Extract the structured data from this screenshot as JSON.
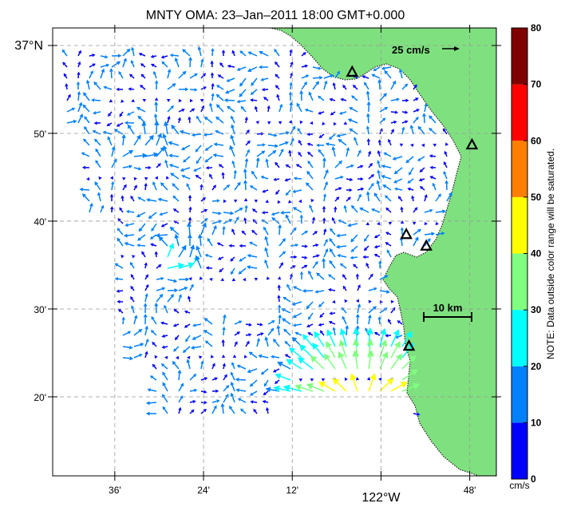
{
  "title": "MNTY OMA: 23–Jan–2011 18:00 GMT+0.000",
  "map": {
    "x_ticks": [
      {
        "label": "36'",
        "lon": -122.6
      },
      {
        "label": "24'",
        "lon": -122.4
      },
      {
        "label": "12'",
        "lon": -122.2
      },
      {
        "label": "122°W",
        "lon": -122.0
      },
      {
        "label": "48'",
        "lon": -121.8
      }
    ],
    "y_ticks": [
      {
        "label": "37°N",
        "lat": 37.0
      },
      {
        "label": "50'",
        "lat": 36.8333
      },
      {
        "label": "40'",
        "lat": 36.6667
      },
      {
        "label": "30'",
        "lat": 36.5
      },
      {
        "label": "20'",
        "lat": 36.3333
      }
    ],
    "lon_range": [
      -122.74,
      -121.74
    ],
    "lat_range": [
      36.1833,
      37.0333
    ],
    "grid": true,
    "land_color": "#7fe07f",
    "reference_vector_label": "25 cm/s",
    "scale_bar_label": "10 km",
    "station_markers": [
      {
        "lon": -122.065,
        "lat": 36.95
      },
      {
        "lon": -121.795,
        "lat": 36.812
      },
      {
        "lon": -121.943,
        "lat": 36.642
      },
      {
        "lon": -121.898,
        "lat": 36.62
      },
      {
        "lon": -121.937,
        "lat": 36.43
      }
    ]
  },
  "colorbar": {
    "unit": "cm/s",
    "ticks": [
      "0",
      "10",
      "20",
      "30",
      "40",
      "50",
      "60",
      "70",
      "80"
    ],
    "colors": [
      "#0000ff",
      "#0080ff",
      "#00ffff",
      "#80ff80",
      "#ffff00",
      "#ff8000",
      "#ff0000",
      "#800000"
    ],
    "note": "NOTE: Data outside color range will be saturated."
  }
}
